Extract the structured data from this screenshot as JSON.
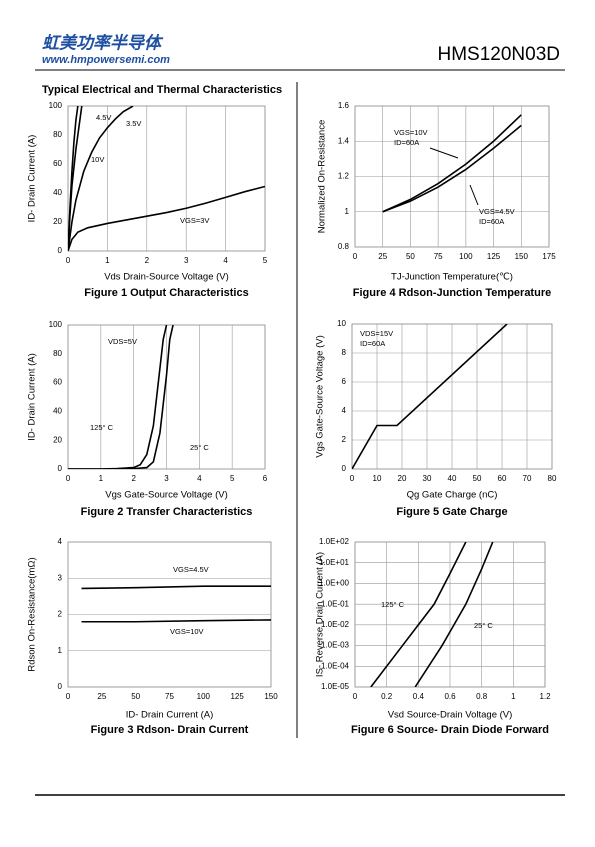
{
  "header": {
    "brand": "虹美功率半导体",
    "website": "www.hmpowersemi.com",
    "part_number": "HMS120N03D"
  },
  "section_title": "Typical Electrical and Thermal Characteristics",
  "chart_data": [
    {
      "type": "line",
      "title": "Figure 1 Output Characteristics",
      "x_label": "Vds Drain-Source Voltage (V)",
      "y_label": "ID- Drain Current (A)",
      "xlim": [
        0,
        5
      ],
      "xticks": [
        0,
        1,
        2,
        3,
        4,
        5
      ],
      "ylim": [
        0,
        100
      ],
      "yticks": [
        0,
        20,
        40,
        60,
        80,
        100
      ],
      "grid": "x",
      "series": [
        {
          "name": "4.5V",
          "color": "#000000",
          "x": [
            0,
            0.05,
            0.1,
            0.2,
            0.3,
            0.35
          ],
          "values": [
            0,
            25,
            45,
            70,
            90,
            100
          ]
        },
        {
          "name": "3.5V",
          "color": "#000000",
          "x": [
            0,
            0.1,
            0.2,
            0.4,
            0.6,
            0.8,
            1.0,
            1.2,
            1.4,
            1.65
          ],
          "values": [
            0,
            20,
            35,
            55,
            68,
            78,
            85,
            91,
            96,
            100
          ]
        },
        {
          "name": "10V",
          "color": "#000000",
          "x": [
            0,
            0.05,
            0.1,
            0.15,
            0.2,
            0.25
          ],
          "values": [
            0,
            30,
            55,
            75,
            90,
            100
          ]
        },
        {
          "name": "VGS=3V",
          "color": "#000000",
          "x": [
            0,
            0.1,
            0.25,
            0.5,
            1,
            1.5,
            2,
            2.5,
            3,
            3.5,
            4,
            4.5,
            5
          ],
          "values": [
            0,
            8,
            13,
            16,
            19,
            21.5,
            24,
            26.5,
            29.5,
            33,
            37,
            41,
            44.5
          ]
        }
      ],
      "annotations": []
    },
    {
      "type": "line",
      "title": "Figure 2 Transfer Characteristics",
      "x_label": "Vgs Gate-Source Voltage (V)",
      "y_label": "ID- Drain Current (A)",
      "xlim": [
        0,
        6
      ],
      "xticks": [
        0,
        1,
        2,
        3,
        4,
        5,
        6
      ],
      "ylim": [
        0,
        100
      ],
      "yticks": [
        0,
        20,
        40,
        60,
        80,
        100
      ],
      "grid": "x",
      "series": [
        {
          "name": "125° C",
          "color": "#000000",
          "x": [
            0,
            1,
            1.5,
            2,
            2.2,
            2.4,
            2.6,
            2.8,
            2.9,
            3.0
          ],
          "values": [
            0,
            0,
            0.3,
            1,
            3,
            10,
            30,
            70,
            90,
            100
          ]
        },
        {
          "name": "25° C",
          "color": "#000000",
          "x": [
            0,
            1.5,
            2,
            2.4,
            2.6,
            2.8,
            3.0,
            3.1,
            3.2
          ],
          "values": [
            0,
            0,
            0.2,
            1,
            5,
            25,
            65,
            90,
            100
          ]
        }
      ],
      "annotations": [
        "VDS=5V"
      ]
    },
    {
      "type": "line",
      "title": "Figure 3 Rdson- Drain Current",
      "x_label": "ID- Drain Current (A)",
      "y_label": "Rdson On-Resistance(mΩ)",
      "xlim": [
        0,
        150
      ],
      "xticks": [
        0,
        25,
        50,
        75,
        100,
        125,
        150
      ],
      "ylim": [
        0,
        4
      ],
      "yticks": [
        0,
        1,
        2,
        3,
        4
      ],
      "grid": "y",
      "series": [
        {
          "name": "VGS=4.5V",
          "color": "#000000",
          "x": [
            10,
            50,
            100,
            150
          ],
          "values": [
            2.72,
            2.74,
            2.78,
            2.78
          ]
        },
        {
          "name": "VGS=10V",
          "color": "#000000",
          "x": [
            10,
            50,
            100,
            150
          ],
          "values": [
            1.8,
            1.8,
            1.83,
            1.85
          ]
        }
      ],
      "annotations": []
    },
    {
      "type": "line",
      "title": "Figure 4 Rdson-Junction Temperature",
      "x_label": "TJ-Junction Temperature(℃)",
      "y_label": "Normalized On-Resistance",
      "xlim": [
        0,
        175
      ],
      "xticks": [
        0,
        25,
        50,
        75,
        100,
        125,
        150,
        175
      ],
      "ylim": [
        0.8,
        1.6
      ],
      "yticks": [
        0.8,
        1,
        1.2,
        1.4,
        1.6
      ],
      "grid": "both",
      "series": [
        {
          "name": "VGS=10V",
          "color": "#000000",
          "x": [
            25,
            50,
            75,
            100,
            125,
            150
          ],
          "values": [
            1.0,
            1.07,
            1.16,
            1.27,
            1.4,
            1.55
          ]
        },
        {
          "name": "VGS=4.5V",
          "color": "#000000",
          "x": [
            25,
            50,
            75,
            100,
            125,
            150
          ],
          "values": [
            1.0,
            1.06,
            1.14,
            1.24,
            1.36,
            1.49
          ]
        }
      ],
      "annotations": [
        "ID=60A",
        "ID=60A"
      ]
    },
    {
      "type": "line",
      "title": "Figure 5 Gate Charge",
      "x_label": "Qg Gate Charge (nC)",
      "y_label": "Vgs Gate-Source Voltage (V)",
      "xlim": [
        0,
        80
      ],
      "xticks": [
        0,
        10,
        20,
        30,
        40,
        50,
        60,
        70,
        80
      ],
      "ylim": [
        0,
        10
      ],
      "yticks": [
        0,
        2,
        4,
        6,
        8,
        10
      ],
      "grid": "both",
      "series": [
        {
          "color": "#000000",
          "x": [
            0,
            10,
            18,
            62
          ],
          "values": [
            0,
            3,
            3,
            10
          ]
        }
      ],
      "annotations": [
        "VDS=15V",
        "ID=60A"
      ]
    },
    {
      "type": "line",
      "title": "Figure 6 Source- Drain Diode Forward",
      "x_label": "Vsd Source-Drain Voltage (V)",
      "y_label": "IS- Reverse Drain Current (A)",
      "xlim": [
        0,
        1.2
      ],
      "xticks": [
        0,
        0.2,
        0.4,
        0.6,
        0.8,
        1,
        1.2
      ],
      "ylim": [
        1e-05,
        100
      ],
      "log_y": true,
      "yticks": [
        {
          "value": 1e-05,
          "label": "1.0E-05"
        },
        {
          "value": 0.0001,
          "label": "1.0E-04"
        },
        {
          "value": 0.001,
          "label": "1.0E-03"
        },
        {
          "value": 0.01,
          "label": "1.0E-02"
        },
        {
          "value": 0.1,
          "label": "1.0E-01"
        },
        {
          "value": 1,
          "label": "1.0E+00"
        },
        {
          "value": 10,
          "label": "1.0E+01"
        },
        {
          "value": 100,
          "label": "1.0E+02"
        }
      ],
      "grid": "both",
      "series": [
        {
          "name": "125° C",
          "color": "#000000",
          "x": [
            0.1,
            0.3,
            0.5,
            0.6,
            0.7
          ],
          "values": [
            1e-05,
            0.001,
            0.1,
            3,
            100
          ]
        },
        {
          "name": "25° C",
          "color": "#000000",
          "x": [
            0.38,
            0.55,
            0.7,
            0.8,
            0.87
          ],
          "values": [
            1e-05,
            0.001,
            0.1,
            5,
            100
          ]
        }
      ],
      "annotations": []
    }
  ]
}
